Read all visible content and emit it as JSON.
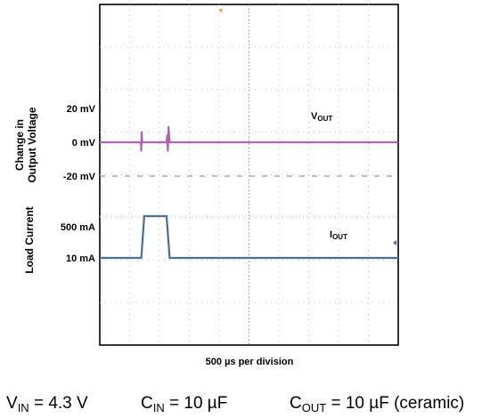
{
  "chart_data": {
    "type": "line",
    "xlabel": "500 µs per division",
    "grid": true,
    "grid_divisions": {
      "x": 10,
      "y": 8
    },
    "axis_titles": {
      "upper": [
        "Change in",
        "Output Voltage"
      ],
      "lower": "Load Current"
    },
    "voltage_axis": {
      "tick_labels": [
        "20 mV",
        "0 mV",
        "-20 mV"
      ],
      "tick_values_mV": [
        20,
        0,
        -20
      ]
    },
    "current_axis": {
      "tick_labels": [
        "500 mA",
        "10 mA"
      ],
      "tick_values_mA": [
        500,
        10
      ]
    },
    "series": [
      {
        "name": "V",
        "name_subscript": "OUT",
        "unit": "mV",
        "color": "#b25fb4",
        "x_us": [
          0,
          690,
          695,
          702,
          710,
          740,
          1120,
          1130,
          1140,
          1150,
          1170,
          5000
        ],
        "values": [
          0,
          0,
          -5,
          6,
          0,
          0,
          0,
          4,
          -5,
          9,
          0,
          0
        ]
      },
      {
        "name": "I",
        "name_subscript": "OUT",
        "unit": "mA",
        "color": "#4a6f94",
        "x_us": [
          0,
          695,
          745,
          1120,
          1170,
          5000
        ],
        "values": [
          10,
          10,
          500,
          500,
          10,
          10
        ]
      }
    ]
  },
  "trigger_marker_color": "#d4a437",
  "conditions": [
    {
      "name": "V",
      "sub": "IN",
      "rest": " = 4.3 V"
    },
    {
      "name": "C",
      "sub": "IN",
      "rest": " = 10 µF"
    },
    {
      "name": "C",
      "sub": "OUT",
      "rest": " = 10 µF (ceramic)"
    }
  ]
}
